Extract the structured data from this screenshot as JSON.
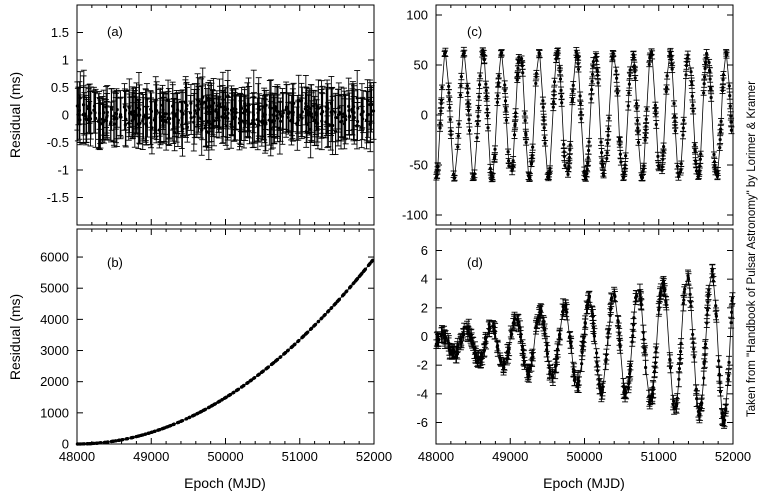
{
  "credit": "Taken from \"Handbook of Pulsar Astronomy\" by Lorimer & Kramer",
  "colors": {
    "ink": "#000000",
    "background": "#ffffff"
  },
  "chart_data": [
    {
      "id": "a",
      "panel_label": "(a)",
      "type": "scatter",
      "xlabel": "",
      "ylabel": "Residual (ms)",
      "xlim": [
        48000,
        52000
      ],
      "ylim": [
        -2.0,
        2.0
      ],
      "yticks": [
        -1.5,
        -1.0,
        -0.5,
        0.0,
        0.5,
        1.0,
        1.5
      ],
      "ytick_labels": [
        "-1.5",
        "-1",
        "-0.5",
        "0",
        "0.5",
        "1",
        "1.5"
      ],
      "show_x_tick_labels": false,
      "connect_points": false,
      "error_bars": true,
      "model": {
        "kind": "white_noise",
        "amplitude": 0.2,
        "err": 0.38
      }
    },
    {
      "id": "b",
      "panel_label": "(b)",
      "type": "scatter",
      "xlabel": "Epoch (MJD)",
      "ylabel": "Residual (ms)",
      "xlim": [
        48000,
        52000
      ],
      "ylim": [
        0,
        6900
      ],
      "yticks": [
        0,
        1000,
        2000,
        3000,
        4000,
        5000,
        6000
      ],
      "ytick_labels": [
        "0",
        "1000",
        "2000",
        "3000",
        "4000",
        "5000",
        "6000"
      ],
      "xticks": [
        48000,
        49000,
        50000,
        51000,
        52000
      ],
      "xtick_labels": [
        "48000",
        "49000",
        "50000",
        "51000",
        "52000"
      ],
      "connect_points": true,
      "error_bars": false,
      "model": {
        "kind": "quadratic",
        "y_at_start": 0,
        "y_at_end": 5950
      }
    },
    {
      "id": "c",
      "panel_label": "(c)",
      "type": "line",
      "xlabel": "",
      "ylabel": "",
      "xlim": [
        48000,
        52000
      ],
      "ylim": [
        -110,
        110
      ],
      "yticks": [
        -100,
        -50,
        0,
        50,
        100
      ],
      "ytick_labels": [
        "-100",
        "-50",
        "0",
        "50",
        "100"
      ],
      "show_x_tick_labels": false,
      "connect_points": true,
      "error_bars": true,
      "model": {
        "kind": "sinusoid",
        "amplitude": 63,
        "period_days": 252,
        "phase_day": 48000,
        "err": 3
      }
    },
    {
      "id": "d",
      "panel_label": "(d)",
      "type": "line",
      "xlabel": "Epoch (MJD)",
      "ylabel": "",
      "xlim": [
        48000,
        52000
      ],
      "ylim": [
        -7.5,
        7.5
      ],
      "yticks": [
        -6,
        -4,
        -2,
        0,
        2,
        4,
        6
      ],
      "ytick_labels": [
        "-6",
        "-4",
        "-2",
        "0",
        "2",
        "4",
        "6"
      ],
      "xticks": [
        48000,
        49000,
        50000,
        51000,
        52000
      ],
      "xtick_labels": [
        "48000",
        "49000",
        "50000",
        "51000",
        "52000"
      ],
      "connect_points": true,
      "error_bars": true,
      "model": {
        "kind": "growing_sinusoid",
        "offset": -0.5,
        "amp_start": 0.5,
        "amp_end": 5.5,
        "period_days": 330,
        "err": 0.4
      }
    }
  ]
}
